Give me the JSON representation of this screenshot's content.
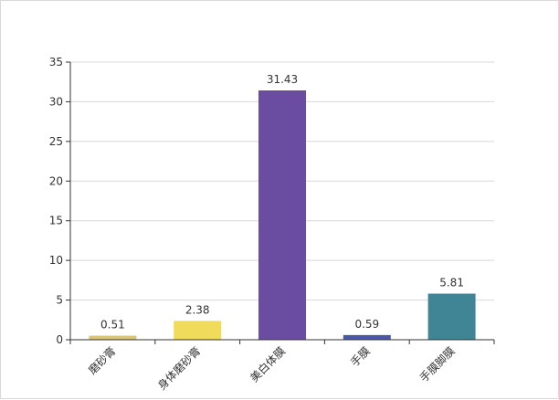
{
  "chart_data": {
    "type": "bar",
    "categories": [
      "磨砂膏",
      "身体磨砂膏",
      "美白体膜",
      "手膜",
      "手膜脚膜"
    ],
    "values": [
      0.51,
      2.38,
      31.43,
      0.59,
      5.81
    ],
    "value_labels": [
      "0.51",
      "2.38",
      "31.43",
      "0.59",
      "5.81"
    ],
    "colors": [
      "#d9c47a",
      "#f0dc5a",
      "#6a4ca1",
      "#4a58a6",
      "#3f8595"
    ],
    "yticks": [
      "0",
      "5",
      "10",
      "15",
      "20",
      "25",
      "30",
      "35"
    ],
    "ylim": [
      0,
      35
    ],
    "grid": true,
    "title": "",
    "xlabel": "",
    "ylabel": ""
  }
}
